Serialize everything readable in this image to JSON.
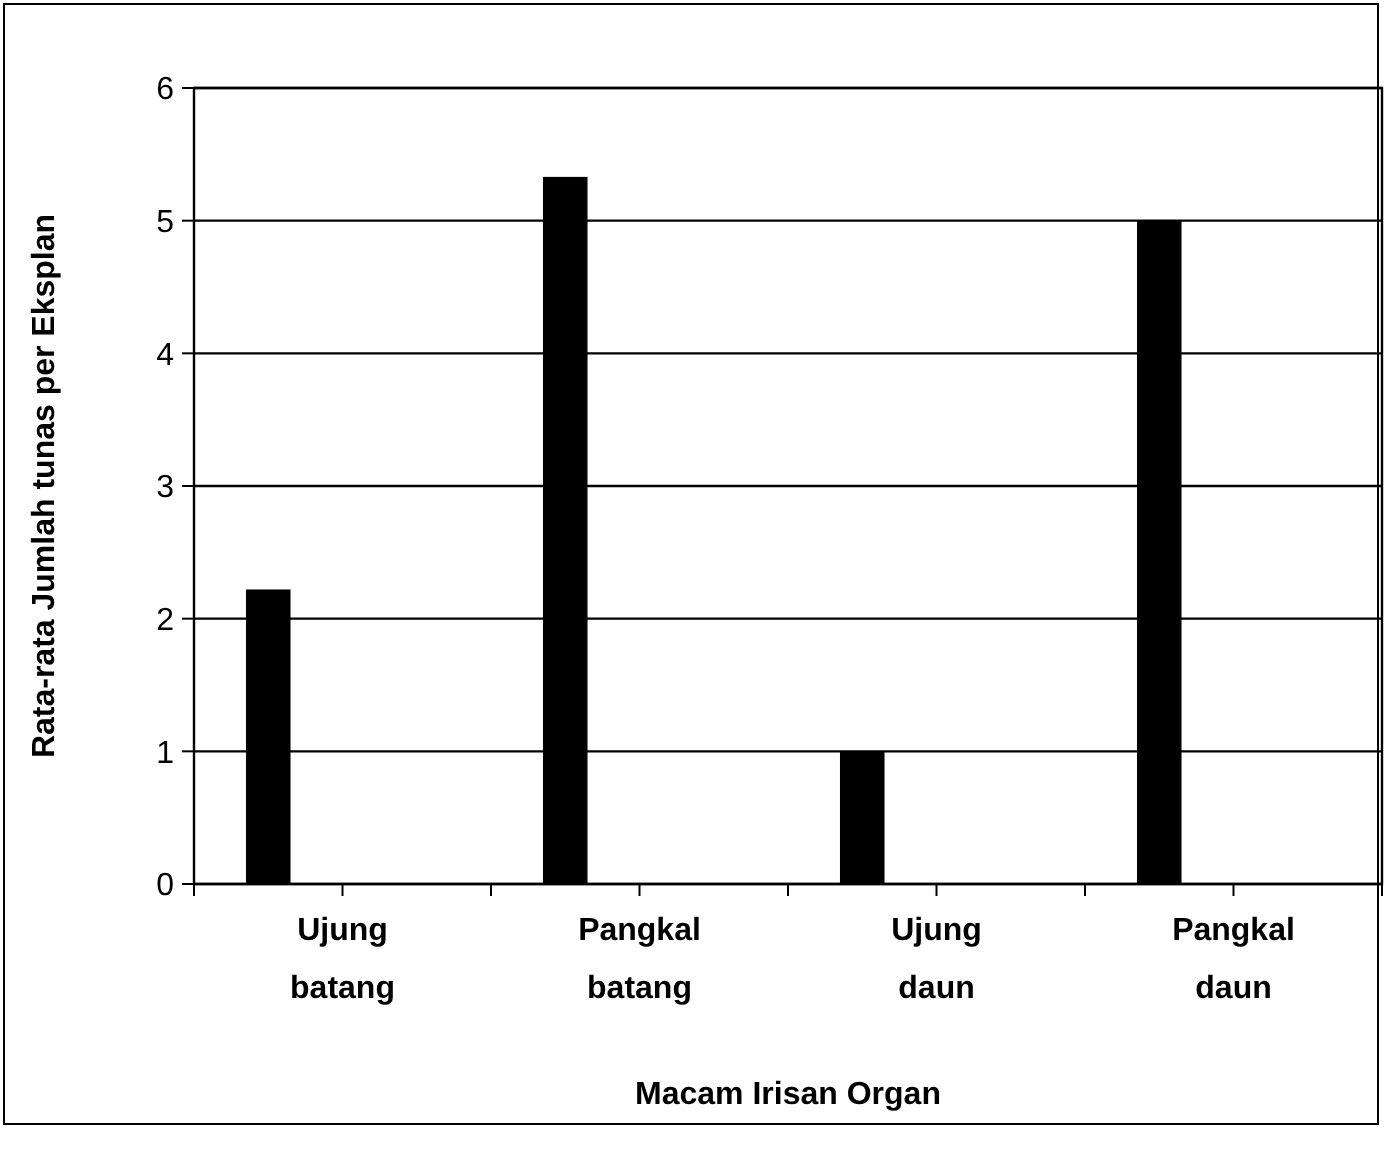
{
  "chart_data": {
    "type": "bar",
    "xlabel": "Macam Irisan Organ",
    "ylabel": "Rata-rata Jumlah tunas per Eksplan",
    "categories": [
      "Ujung batang",
      null,
      "Pangkal batang",
      null,
      "Ujung daun",
      null,
      "Pangkal daun",
      null
    ],
    "values": [
      2.22,
      null,
      5.33,
      null,
      1,
      null,
      5,
      null
    ],
    "color": "#000000",
    "ylim": [
      0,
      6
    ],
    "yticks": [
      0,
      1,
      2,
      3,
      4,
      5,
      6
    ],
    "grid": "y"
  }
}
